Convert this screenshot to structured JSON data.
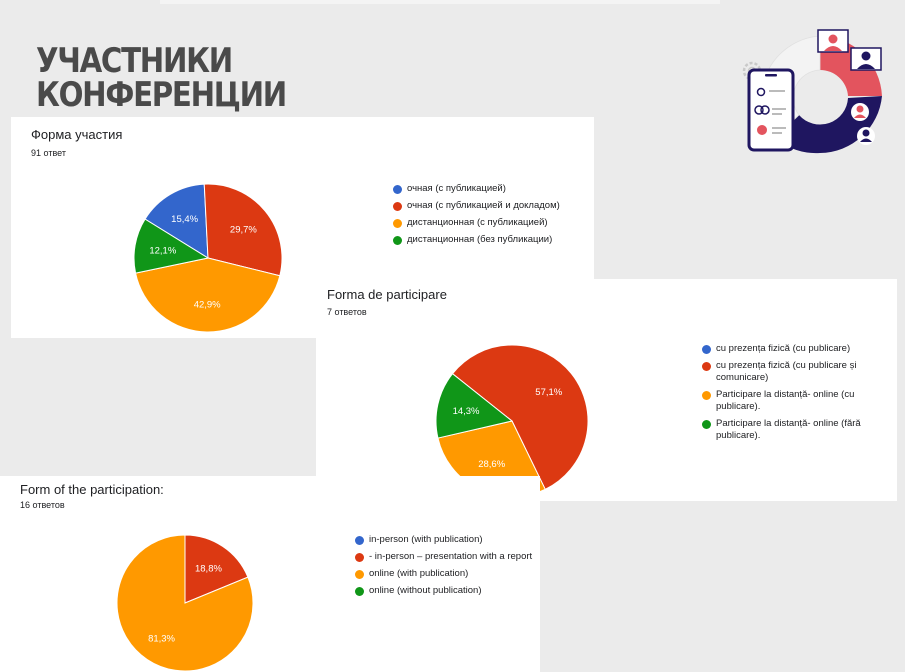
{
  "page": {
    "title_lines": [
      "УЧАСТНИКИ",
      "КОНФЕРЕНЦИИ"
    ]
  },
  "illustration": {
    "icon": "conference-participants-illustration",
    "colors": [
      "#e3545e",
      "#1f1660",
      "#ffffff"
    ]
  },
  "chart_data": [
    {
      "type": "pie",
      "title": "Форма участия",
      "subtitle": "91 ответ",
      "categories": [
        "очная (с публикацией)",
        "очная (с публикацией и докладом)",
        "дистанционная (с публикацией)",
        "дистанционная (без публикации)"
      ],
      "values": [
        15.4,
        29.7,
        42.9,
        12.1
      ],
      "labels": [
        "15,4%",
        "29,7%",
        "42,9%",
        "12,1%"
      ],
      "colors": [
        "#3366cc",
        "#dc3912",
        "#ff9900",
        "#109618"
      ],
      "legend_position": "right"
    },
    {
      "type": "pie",
      "title": "Forma de participare",
      "subtitle": "7 ответов",
      "categories": [
        "cu prezența fizică (cu publicare)",
        "cu prezența fizică (cu publicare și comunicare)",
        "Participare la distanță- online (cu publicare).",
        "Participare la distanță- online (fără publicare)."
      ],
      "values": [
        0,
        57.1,
        28.6,
        14.3
      ],
      "labels": [
        "",
        "57,1%",
        "28,6%",
        "14,3%"
      ],
      "colors": [
        "#3366cc",
        "#dc3912",
        "#ff9900",
        "#109618"
      ],
      "legend_position": "right"
    },
    {
      "type": "pie",
      "title": "Form of the participation:",
      "subtitle": "16 ответов",
      "categories": [
        "in-person (with publication)",
        "- in-person – presentation with a report",
        "online (with publication)",
        "online (without publication)"
      ],
      "values": [
        0,
        18.8,
        81.3,
        0
      ],
      "labels": [
        "",
        "18,8%",
        "81,3%",
        ""
      ],
      "colors": [
        "#3366cc",
        "#dc3912",
        "#ff9900",
        "#109618"
      ],
      "legend_position": "right"
    }
  ]
}
